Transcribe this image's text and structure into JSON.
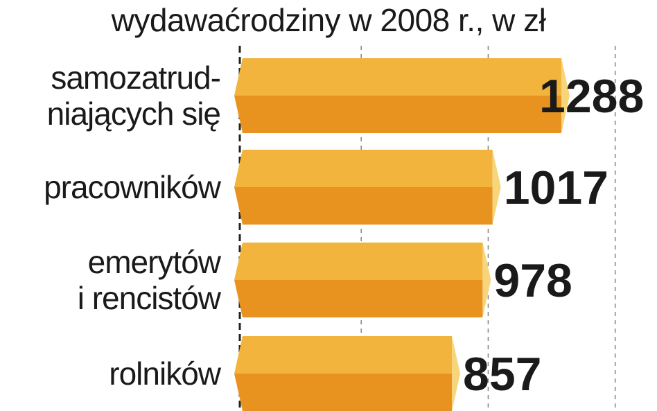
{
  "chart_data": {
    "type": "bar",
    "orientation": "horizontal",
    "title": "wydawaćrodziny w 2008 r., w zł",
    "categories": [
      [
        "samozatrud-",
        "niających się"
      ],
      [
        "pracowników"
      ],
      [
        "emerytów",
        "i rencistów"
      ],
      [
        "rolników"
      ]
    ],
    "values": [
      1288,
      1017,
      978,
      857
    ],
    "value_labels": [
      "1288",
      "1017",
      "978",
      "857"
    ],
    "xlim": [
      0,
      1500
    ],
    "grid": true,
    "colors": {
      "bar_top": "#f2b43c",
      "bar_bottom": "#e8931f",
      "bar_tip": "#f7d57a",
      "grid": "#8a8a8a",
      "text": "#1a1a1a"
    }
  }
}
